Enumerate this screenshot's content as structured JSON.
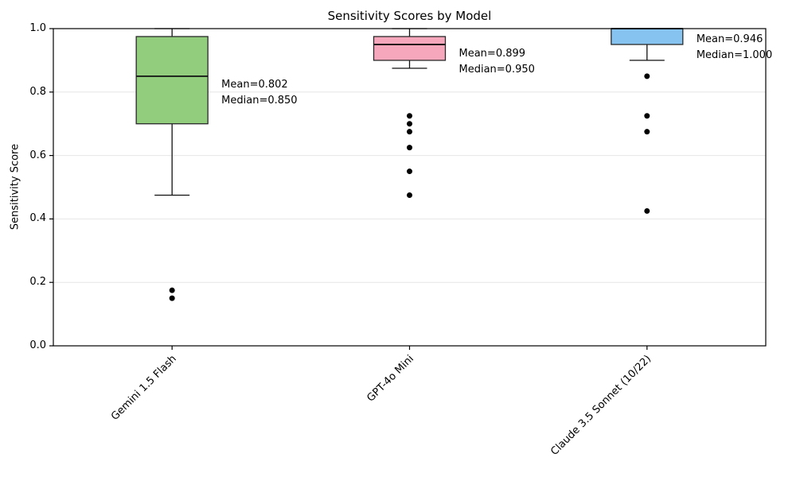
{
  "figure": {
    "title": "Sensitivity Scores by Model",
    "ylabel": "Sensitivity Score"
  },
  "chart_data": {
    "type": "box",
    "title": "Sensitivity Scores by Model",
    "xlabel": "",
    "ylabel": "Sensitivity Score",
    "ylim": [
      0.0,
      1.0
    ],
    "yticks": [
      0.0,
      0.2,
      0.4,
      0.6,
      0.8,
      1.0
    ],
    "ytick_labels": [
      "0.0",
      "0.2",
      "0.4",
      "0.6",
      "0.8",
      "1.0"
    ],
    "grid": "horizontal-light",
    "legend": "none",
    "categories": [
      "Gemini 1.5 Flash",
      "GPT-4o Mini",
      "Claude 3.5 Sonnet (10/22)"
    ],
    "series": [
      {
        "label": "Gemini 1.5 Flash",
        "box_color": "#92cd7e",
        "whisker_low": 0.475,
        "q1": 0.7,
        "median": 0.85,
        "q3": 0.975,
        "whisker_high": 1.0,
        "mean": 0.802,
        "outliers": [
          0.175,
          0.15
        ],
        "annotation_lines": [
          "Mean=0.802",
          "Median=0.850"
        ]
      },
      {
        "label": "GPT-4o Mini",
        "box_color": "#f7a7bc",
        "whisker_low": 0.875,
        "q1": 0.9,
        "median": 0.95,
        "q3": 0.975,
        "whisker_high": 1.0,
        "mean": 0.899,
        "outliers": [
          0.725,
          0.7,
          0.675,
          0.625,
          0.55,
          0.475
        ],
        "annotation_lines": [
          "Mean=0.899",
          "Median=0.950"
        ]
      },
      {
        "label": "Claude 3.5 Sonnet (10/22)",
        "box_color": "#86c3f0",
        "whisker_low": 0.9,
        "q1": 0.95,
        "median": 1.0,
        "q3": 1.0,
        "whisker_high": 1.0,
        "mean": 0.946,
        "outliers": [
          0.85,
          0.725,
          0.675,
          0.425
        ],
        "annotation_lines": [
          "Mean=0.946",
          "Median=1.000"
        ]
      }
    ],
    "colors": {
      "grid": "#e6e6e6",
      "spine": "#000000",
      "box_edge": "#2a2a2a",
      "median_line": "#111111",
      "whisker": "#111111",
      "outlier": "#000000",
      "background": "#ffffff"
    }
  }
}
